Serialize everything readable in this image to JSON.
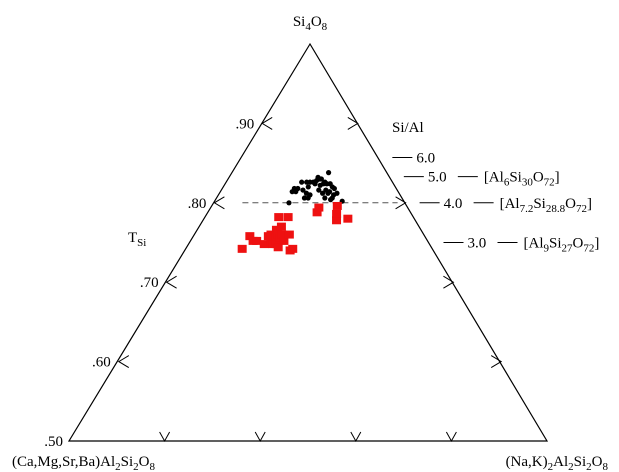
{
  "chart_data": {
    "type": "scatter",
    "ternary": true,
    "vertices": {
      "top": {
        "name": "Si",
        "sub": "4",
        "name2": "O",
        "sub2": "8"
      },
      "left": "(Ca,Mg,Sr,Ba)Al2Si2O8",
      "right": "(Na,K)2Al2Si2O8"
    },
    "axis_label": {
      "main": "T",
      "sub": "Si"
    },
    "tsi_range": [
      0.5,
      1.0
    ],
    "left_ticks": [
      {
        "value": 0.9,
        "label": ".90"
      },
      {
        "value": 0.8,
        "label": ".80"
      },
      {
        "value": 0.7,
        "label": ".70"
      },
      {
        "value": 0.6,
        "label": ".60"
      },
      {
        "value": 0.5,
        "label": ".50"
      }
    ],
    "dashed_line_tsi": 0.8,
    "sial": {
      "title": "Si/Al",
      "ticks": [
        {
          "label": "6.0",
          "tsi": 0.857
        },
        {
          "label": "5.0",
          "tsi": 0.833,
          "formula": "[Al6Si30O72]"
        },
        {
          "label": "4.0",
          "tsi": 0.8,
          "formula": "[Al7.2Si28.8O72]"
        },
        {
          "label": "3.0",
          "tsi": 0.75,
          "formula": "[Al9Si27O72]"
        }
      ]
    },
    "series": [
      {
        "color": "#000000",
        "marker": "circle",
        "points": [
          {
            "x": 0.39,
            "t": 0.8
          },
          {
            "x": 0.4,
            "t": 0.814
          },
          {
            "x": 0.41,
            "t": 0.818
          },
          {
            "x": 0.42,
            "t": 0.814
          },
          {
            "x": 0.43,
            "t": 0.818
          },
          {
            "x": 0.45,
            "t": 0.826
          },
          {
            "x": 0.46,
            "t": 0.816
          },
          {
            "x": 0.47,
            "t": 0.806
          },
          {
            "x": 0.48,
            "t": 0.826
          },
          {
            "x": 0.48,
            "t": 0.812
          },
          {
            "x": 0.49,
            "t": 0.806
          },
          {
            "x": 0.49,
            "t": 0.82
          },
          {
            "x": 0.5,
            "t": 0.81
          },
          {
            "x": 0.5,
            "t": 0.826
          },
          {
            "x": 0.52,
            "t": 0.826
          },
          {
            "x": 0.53,
            "t": 0.824
          },
          {
            "x": 0.54,
            "t": 0.828
          },
          {
            "x": 0.55,
            "t": 0.832
          },
          {
            "x": 0.55,
            "t": 0.816
          },
          {
            "x": 0.56,
            "t": 0.83
          },
          {
            "x": 0.56,
            "t": 0.822
          },
          {
            "x": 0.57,
            "t": 0.83
          },
          {
            "x": 0.57,
            "t": 0.812
          },
          {
            "x": 0.58,
            "t": 0.824
          },
          {
            "x": 0.58,
            "t": 0.806
          },
          {
            "x": 0.59,
            "t": 0.816
          },
          {
            "x": 0.59,
            "t": 0.826
          },
          {
            "x": 0.6,
            "t": 0.812
          },
          {
            "x": 0.6,
            "t": 0.824
          },
          {
            "x": 0.61,
            "t": 0.804
          },
          {
            "x": 0.61,
            "t": 0.814
          },
          {
            "x": 0.62,
            "t": 0.824
          },
          {
            "x": 0.62,
            "t": 0.838
          },
          {
            "x": 0.62,
            "t": 0.806
          },
          {
            "x": 0.63,
            "t": 0.82
          },
          {
            "x": 0.63,
            "t": 0.81
          },
          {
            "x": 0.64,
            "t": 0.818
          },
          {
            "x": 0.65,
            "t": 0.812
          },
          {
            "x": 0.67,
            "t": 0.802
          }
        ]
      },
      {
        "color": "#ee1111",
        "marker": "square",
        "points": [
          {
            "x": 0.225,
            "t": 0.742
          },
          {
            "x": 0.24,
            "t": 0.758
          },
          {
            "x": 0.26,
            "t": 0.752
          },
          {
            "x": 0.275,
            "t": 0.752
          },
          {
            "x": 0.31,
            "t": 0.748
          },
          {
            "x": 0.32,
            "t": 0.758
          },
          {
            "x": 0.33,
            "t": 0.76
          },
          {
            "x": 0.335,
            "t": 0.752
          },
          {
            "x": 0.345,
            "t": 0.748
          },
          {
            "x": 0.35,
            "t": 0.782
          },
          {
            "x": 0.35,
            "t": 0.766
          },
          {
            "x": 0.355,
            "t": 0.756
          },
          {
            "x": 0.36,
            "t": 0.76
          },
          {
            "x": 0.36,
            "t": 0.748
          },
          {
            "x": 0.37,
            "t": 0.77
          },
          {
            "x": 0.37,
            "t": 0.756
          },
          {
            "x": 0.37,
            "t": 0.744
          },
          {
            "x": 0.38,
            "t": 0.76
          },
          {
            "x": 0.39,
            "t": 0.752
          },
          {
            "x": 0.395,
            "t": 0.782
          },
          {
            "x": 0.41,
            "t": 0.76
          },
          {
            "x": 0.42,
            "t": 0.74
          },
          {
            "x": 0.43,
            "t": 0.742
          },
          {
            "x": 0.535,
            "t": 0.788
          },
          {
            "x": 0.545,
            "t": 0.794
          },
          {
            "x": 0.625,
            "t": 0.778
          },
          {
            "x": 0.63,
            "t": 0.786
          },
          {
            "x": 0.64,
            "t": 0.796
          },
          {
            "x": 0.68,
            "t": 0.78
          }
        ]
      }
    ]
  }
}
